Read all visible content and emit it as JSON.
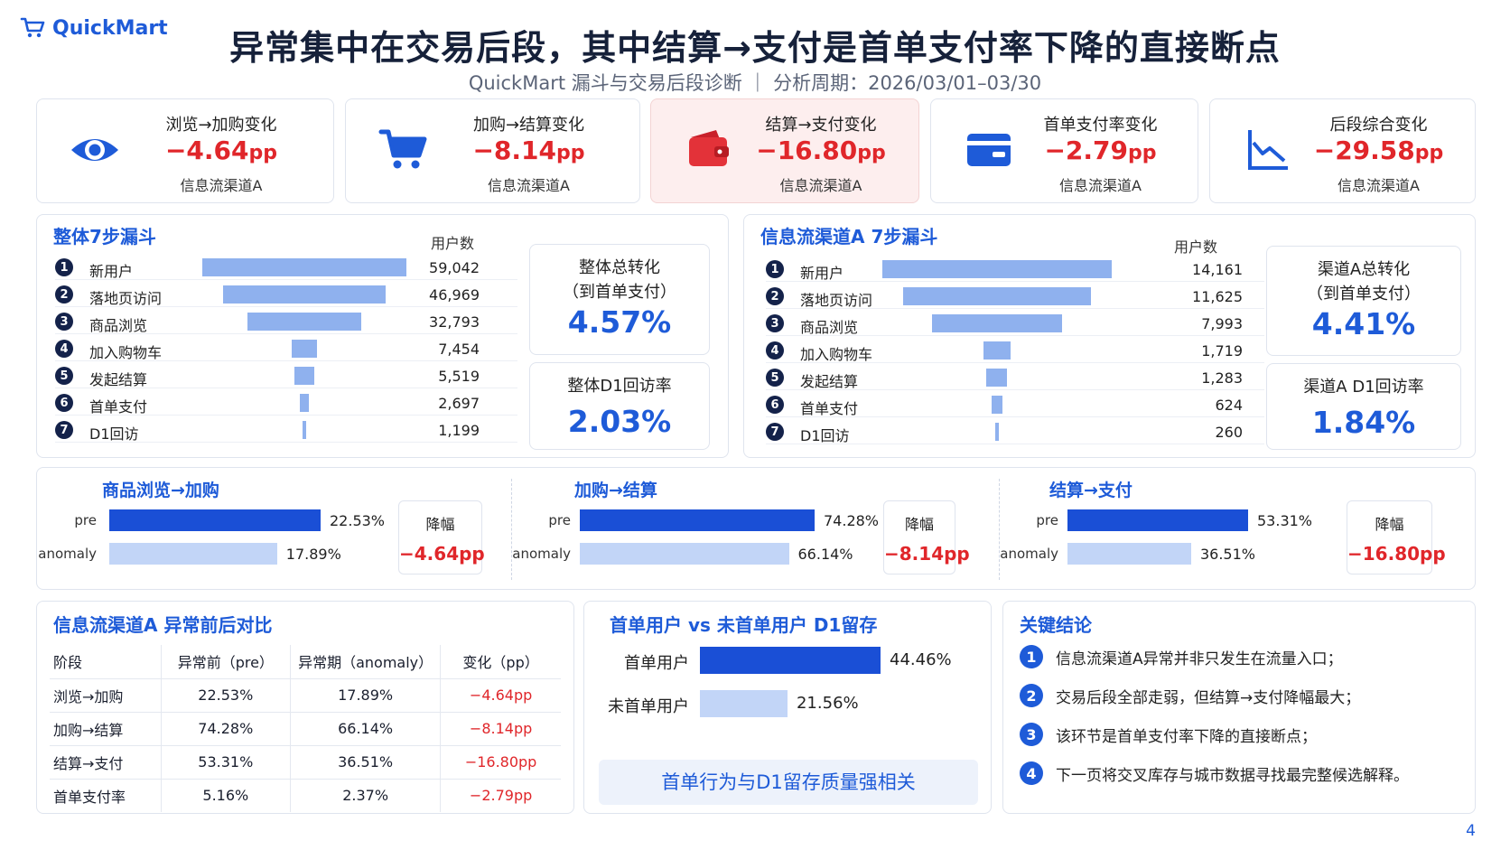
{
  "logo": {
    "text": "QuickMart"
  },
  "title": "异常集中在交易后段，其中结算→支付是首单支付率下降的直接断点",
  "subtitle": "QuickMart 漏斗与交易后段诊断 ｜ 分析周期：2026/03/01–03/30",
  "kpis": [
    {
      "label": "浏览→加购变化",
      "value": "−4.64",
      "unit": "pp",
      "sub": "信息流渠道A",
      "icon": "eye-icon"
    },
    {
      "label": "加购→结算变化",
      "value": "−8.14",
      "unit": "pp",
      "sub": "信息流渠道A",
      "icon": "cart-icon"
    },
    {
      "label": "结算→支付变化",
      "value": "−16.80",
      "unit": "pp",
      "sub": "信息流渠道A",
      "icon": "wallet-icon"
    },
    {
      "label": "首单支付率变化",
      "value": "−2.79",
      "unit": "pp",
      "sub": "信息流渠道A",
      "icon": "card-icon"
    },
    {
      "label": "后段综合变化",
      "value": "−29.58",
      "unit": "pp",
      "sub": "信息流渠道A",
      "icon": "chart-down-icon"
    }
  ],
  "colors": {
    "accent": "#1e5bd8",
    "negative": "#e0262a",
    "bar_light": "#8fb1ee",
    "pre_bar": "#1a4fd6",
    "anomaly_bar": "#c2d5f7"
  },
  "chart_data": [
    {
      "type": "bar",
      "title": "整体7步漏斗",
      "ylabel": "用户数",
      "categories": [
        "新用户",
        "落地页访问",
        "商品浏览",
        "加入购物车",
        "发起结算",
        "首单支付",
        "D1回访"
      ],
      "values": [
        59042,
        46969,
        32793,
        7454,
        5519,
        2697,
        1199
      ],
      "value_labels": [
        "59,042",
        "46,969",
        "32,793",
        "7,454",
        "5,519",
        "2,697",
        "1,199"
      ]
    },
    {
      "type": "bar",
      "title": "信息流渠道A 7步漏斗",
      "ylabel": "用户数",
      "categories": [
        "新用户",
        "落地页访问",
        "商品浏览",
        "加入购物车",
        "发起结算",
        "首单支付",
        "D1回访"
      ],
      "values": [
        14161,
        11625,
        7993,
        1719,
        1283,
        624,
        260
      ],
      "value_labels": [
        "14,161",
        "11,625",
        "7,993",
        "1,719",
        "1,283",
        "624",
        "260"
      ]
    },
    {
      "type": "bar",
      "title": "商品浏览→加购",
      "categories": [
        "pre",
        "anomaly"
      ],
      "values": [
        22.53,
        17.89
      ],
      "value_labels": [
        "22.53%",
        "17.89%"
      ],
      "drop_label": "降幅",
      "drop_value": "−4.64pp"
    },
    {
      "type": "bar",
      "title": "加购→结算",
      "categories": [
        "pre",
        "anomaly"
      ],
      "values": [
        74.28,
        66.14
      ],
      "value_labels": [
        "74.28%",
        "66.14%"
      ],
      "drop_label": "降幅",
      "drop_value": "−8.14pp"
    },
    {
      "type": "bar",
      "title": "结算→支付",
      "categories": [
        "pre",
        "anomaly"
      ],
      "values": [
        53.31,
        36.51
      ],
      "value_labels": [
        "53.31%",
        "36.51%"
      ],
      "drop_label": "降幅",
      "drop_value": "−16.80pp"
    },
    {
      "type": "table",
      "title": "信息流渠道A 异常前后对比",
      "columns": [
        "阶段",
        "异常前（pre）",
        "异常期（anomaly）",
        "变化（pp）"
      ],
      "rows": [
        [
          "浏览→加购",
          "22.53%",
          "17.89%",
          "−4.64pp"
        ],
        [
          "加购→结算",
          "74.28%",
          "66.14%",
          "−8.14pp"
        ],
        [
          "结算→支付",
          "53.31%",
          "36.51%",
          "−16.80pp"
        ],
        [
          "首单支付率",
          "5.16%",
          "2.37%",
          "−2.79pp"
        ]
      ]
    },
    {
      "type": "bar",
      "title": "首单用户 vs 未首单用户 D1留存",
      "categories": [
        "首单用户",
        "未首单用户"
      ],
      "values": [
        44.46,
        21.56
      ],
      "value_labels": [
        "44.46%",
        "21.56%"
      ]
    }
  ],
  "overall_rates": {
    "total_label_1": "整体总转化",
    "total_label_2": "（到首单支付）",
    "total_value": "4.57%",
    "d1_label": "整体D1回访率",
    "d1_value": "2.03%"
  },
  "channel_rates": {
    "total_label_1": "渠道A总转化",
    "total_label_2": "（到首单支付）",
    "total_value": "4.41%",
    "d1_label": "渠道A D1回访率",
    "d1_value": "1.84%"
  },
  "retention_note": "首单行为与D1留存质量强相关",
  "conclusions": {
    "title": "关键结论",
    "items": [
      "信息流渠道A异常并非只发生在流量入口；",
      "交易后段全部走弱，但结算→支付降幅最大；",
      "该环节是首单支付率下降的直接断点；",
      "下一页将交叉库存与城市数据寻找最完整候选解释。"
    ]
  },
  "page_number": "4"
}
